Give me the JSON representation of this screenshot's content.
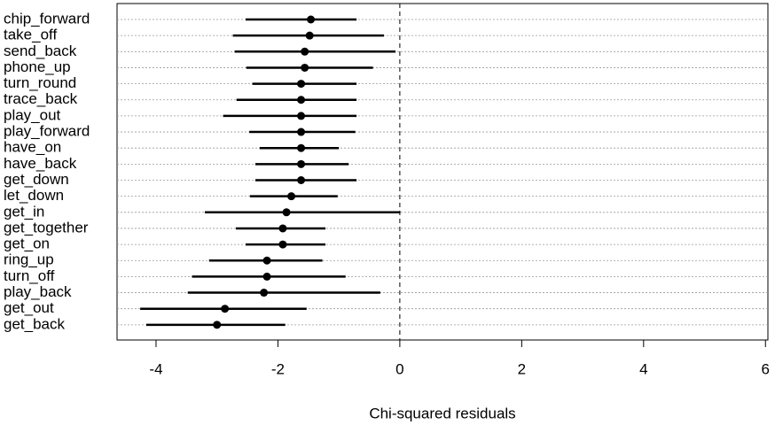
{
  "chart_data": {
    "type": "dot",
    "xlabel": "Chi-squared residuals",
    "categories": [
      "chip_forward",
      "take_off",
      "send_back",
      "phone_up",
      "turn_round",
      "trace_back",
      "play_out",
      "play_forward",
      "have_on",
      "have_back",
      "get_down",
      "let_down",
      "get_in",
      "get_together",
      "get_on",
      "ring_up",
      "turn_off",
      "play_back",
      "get_out",
      "get_back"
    ],
    "values": [
      -1.46,
      -1.48,
      -1.56,
      -1.56,
      -1.62,
      -1.62,
      -1.62,
      -1.62,
      -1.62,
      -1.62,
      -1.62,
      -1.78,
      -1.86,
      -1.92,
      -1.92,
      -2.18,
      -2.18,
      -2.23,
      -2.87,
      -3.0
    ],
    "lower": [
      -2.53,
      -2.74,
      -2.71,
      -2.52,
      -2.42,
      -2.68,
      -2.9,
      -2.47,
      -2.3,
      -2.37,
      -2.37,
      -2.46,
      -3.2,
      -2.69,
      -2.53,
      -3.13,
      -3.41,
      -3.48,
      -4.26,
      -4.16
    ],
    "upper": [
      -0.71,
      -0.26,
      -0.07,
      -0.44,
      -0.71,
      -0.71,
      -0.71,
      -0.73,
      -1.0,
      -0.84,
      -0.71,
      -1.02,
      0.01,
      -1.22,
      -1.22,
      -1.27,
      -0.89,
      -0.32,
      -1.53,
      -1.88
    ],
    "color": "#000000",
    "xlim": [
      -4.64,
      6.04
    ],
    "xticks": [
      -4,
      -2,
      0,
      2,
      4,
      6
    ],
    "reference_line": 0,
    "grid": true
  }
}
